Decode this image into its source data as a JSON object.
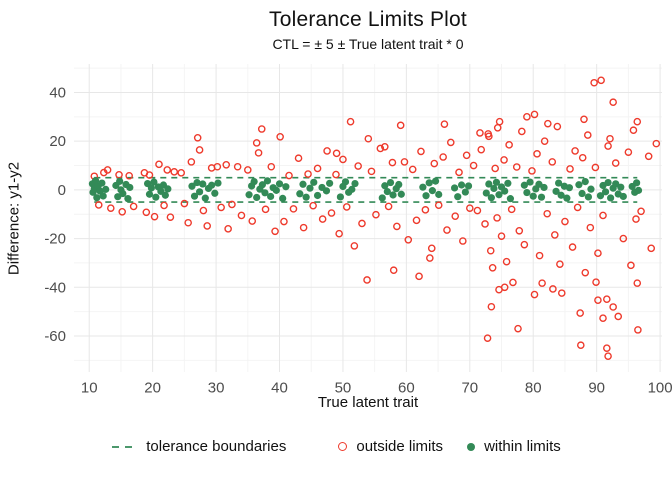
{
  "title": "Tolerance Limits Plot",
  "subtitle": "CTL = ± 5 ± True latent trait * 0",
  "colors": {
    "within": "#338a57",
    "outside": "#ee3a2c",
    "boundary": "#338a57",
    "grid_major": "#e7e7e7",
    "grid_minor": "#f4f4f4",
    "axis_text": "#4d4d4d",
    "text": "#111111",
    "background": "#ffffff"
  },
  "legend": {
    "items": [
      {
        "label": "tolerance boundaries",
        "marker": "green-dashes"
      },
      {
        "label": "outside limits",
        "marker": "red-open-circle"
      },
      {
        "label": "within limits",
        "marker": "green-filled-circle"
      }
    ]
  },
  "chart_data": {
    "type": "scatter",
    "title": "Tolerance Limits Plot",
    "subtitle": "CTL = ± 5 ± True latent trait * 0",
    "xlabel": "True latent trait",
    "ylabel": "Difference: y1-y2",
    "xlim": [
      7.6,
      100.3
    ],
    "ylim": [
      -74.8,
      51.7
    ],
    "x_ticks": [
      10,
      20,
      30,
      40,
      50,
      60,
      70,
      80,
      90,
      100
    ],
    "y_ticks": [
      40,
      20,
      0,
      -20,
      -40,
      -60
    ],
    "grid": true,
    "minor_grid": true,
    "legend_position": "bottom",
    "tolerance_limits": {
      "upper": 5,
      "lower": -5,
      "x_start": 10.8,
      "x_end": 96.4,
      "style": "dashed"
    },
    "series": [
      {
        "name": "within limits",
        "marker": "filled-circle",
        "color": "#338a57",
        "points": [
          [
            10.5,
            2.5
          ],
          [
            10.6,
            -1
          ],
          [
            10.8,
            0.5
          ],
          [
            11,
            3.8
          ],
          [
            11.2,
            -3.2
          ],
          [
            11.4,
            1.5
          ],
          [
            11.7,
            -0.5
          ],
          [
            12,
            2.8
          ],
          [
            12.2,
            -2.5
          ],
          [
            12.6,
            0.2
          ],
          [
            14.2,
            1.8
          ],
          [
            14.5,
            -2.8
          ],
          [
            14.8,
            3.5
          ],
          [
            15,
            0
          ],
          [
            15.3,
            -1.5
          ],
          [
            15.8,
            2.2
          ],
          [
            16.1,
            -3.6
          ],
          [
            16.4,
            1
          ],
          [
            19.2,
            2.6
          ],
          [
            19.5,
            -1.8
          ],
          [
            19.8,
            0.8
          ],
          [
            20.2,
            3.2
          ],
          [
            20.5,
            -3
          ],
          [
            20.9,
            1.2
          ],
          [
            21.3,
            -0.6
          ],
          [
            21.7,
            2
          ],
          [
            22,
            -2.2
          ],
          [
            22.4,
            0.4
          ],
          [
            26.2,
            1.5
          ],
          [
            26.6,
            -2.6
          ],
          [
            27,
            3
          ],
          [
            27.4,
            -0.8
          ],
          [
            27.9,
            2.4
          ],
          [
            28.3,
            -3.4
          ],
          [
            28.8,
            0.6
          ],
          [
            29.3,
            1.9
          ],
          [
            29.8,
            -1.4
          ],
          [
            30.3,
            2.8
          ],
          [
            35.2,
            -2
          ],
          [
            35.6,
            1.6
          ],
          [
            36,
            3.4
          ],
          [
            36.4,
            -3.1
          ],
          [
            36.9,
            0.3
          ],
          [
            37.3,
            2.1
          ],
          [
            37.7,
            -1.2
          ],
          [
            38.1,
            3.7
          ],
          [
            38.6,
            -2.7
          ],
          [
            39,
            0.9
          ],
          [
            39.5,
            -0.2
          ],
          [
            40,
            2.5
          ],
          [
            40.5,
            -3.5
          ],
          [
            41,
            1.3
          ],
          [
            43.2,
            -1.6
          ],
          [
            43.7,
            2.3
          ],
          [
            44.2,
            -3
          ],
          [
            44.8,
            0.7
          ],
          [
            45.4,
            3.1
          ],
          [
            46,
            -2.3
          ],
          [
            46.7,
            1
          ],
          [
            47.4,
            -0.4
          ],
          [
            47.9,
            2.7
          ],
          [
            49.6,
            -2.9
          ],
          [
            50,
            1.4
          ],
          [
            50.4,
            3.3
          ],
          [
            50.9,
            -1
          ],
          [
            51.4,
            0.2
          ],
          [
            51.9,
            2.6
          ],
          [
            56.2,
            -3.3
          ],
          [
            56.6,
            1.7
          ],
          [
            57,
            -0.7
          ],
          [
            57.5,
            3
          ],
          [
            57.9,
            -2.1
          ],
          [
            58.4,
            0.5
          ],
          [
            58.8,
            2.2
          ],
          [
            59.2,
            -1.8
          ],
          [
            62.6,
            1.1
          ],
          [
            63.1,
            -2.4
          ],
          [
            63.6,
            2.9
          ],
          [
            64.1,
            -0.3
          ],
          [
            64.6,
            3.6
          ],
          [
            65.1,
            -1.9
          ],
          [
            67.6,
            0.8
          ],
          [
            68.1,
            -2.8
          ],
          [
            68.7,
            2
          ],
          [
            69.3,
            -0.9
          ],
          [
            69.8,
            1.6
          ],
          [
            72.6,
            -1.3
          ],
          [
            73,
            2.4
          ],
          [
            73.4,
            -3.2
          ],
          [
            73.8,
            0.6
          ],
          [
            74.2,
            3.1
          ],
          [
            74.6,
            -2
          ],
          [
            75,
            1.2
          ],
          [
            75.5,
            -0.5
          ],
          [
            76,
            2.7
          ],
          [
            76.4,
            -3.6
          ],
          [
            78.6,
            1.9
          ],
          [
            79,
            -1.1
          ],
          [
            79.5,
            3.2
          ],
          [
            80,
            -2.6
          ],
          [
            80.4,
            0.4
          ],
          [
            80.9,
            2.3
          ],
          [
            81.3,
            -3
          ],
          [
            81.7,
            1
          ],
          [
            83.6,
            -0.6
          ],
          [
            84,
            2.8
          ],
          [
            84.4,
            -2.2
          ],
          [
            84.9,
            1.5
          ],
          [
            85.3,
            -3.4
          ],
          [
            85.7,
            0.9
          ],
          [
            87.2,
            2.1
          ],
          [
            87.7,
            -1.5
          ],
          [
            88.2,
            3.4
          ],
          [
            88.7,
            -2.9
          ],
          [
            89.1,
            0.3
          ],
          [
            90.6,
            -2.4
          ],
          [
            91,
            1.8
          ],
          [
            91.4,
            -0.8
          ],
          [
            91.8,
            3
          ],
          [
            92.2,
            -3.3
          ],
          [
            92.6,
            0.7
          ],
          [
            93,
            2.5
          ],
          [
            93.4,
            -1.7
          ],
          [
            93.8,
            1.1
          ],
          [
            94.2,
            -2.7
          ],
          [
            95.6,
            1.4
          ],
          [
            96,
            -1
          ],
          [
            96.3,
            2.9
          ],
          [
            96.6,
            -0.2
          ]
        ]
      },
      {
        "name": "outside limits",
        "marker": "open-circle",
        "color": "#ee3a2c",
        "points": [
          [
            10.8,
            5.6
          ],
          [
            11.5,
            -6.2
          ],
          [
            12.3,
            7.1
          ],
          [
            12.9,
            8.2
          ],
          [
            13.4,
            -7.5
          ],
          [
            14.7,
            6.2
          ],
          [
            15.2,
            -9
          ],
          [
            16.3,
            5.8
          ],
          [
            17,
            -6.8
          ],
          [
            18.7,
            7
          ],
          [
            19,
            -9.2
          ],
          [
            19.5,
            6.1
          ],
          [
            20.3,
            -11
          ],
          [
            21,
            10.5
          ],
          [
            21.8,
            -6.4
          ],
          [
            22.3,
            8.2
          ],
          [
            22.8,
            -11.2
          ],
          [
            23.4,
            7.4
          ],
          [
            24.5,
            7
          ],
          [
            25,
            -5.6
          ],
          [
            25.6,
            -13.5
          ],
          [
            26.1,
            11.5
          ],
          [
            27.1,
            21.4
          ],
          [
            27.4,
            16.4
          ],
          [
            28,
            -8.5
          ],
          [
            28.6,
            -14.8
          ],
          [
            29.3,
            9
          ],
          [
            30.2,
            9.5
          ],
          [
            30.8,
            -7.2
          ],
          [
            31.6,
            10.3
          ],
          [
            31.9,
            -16
          ],
          [
            32.5,
            -6
          ],
          [
            33.4,
            9.5
          ],
          [
            34,
            -10.5
          ],
          [
            35,
            8.2
          ],
          [
            35.7,
            -12.8
          ],
          [
            36.4,
            19.3
          ],
          [
            36.7,
            15.2
          ],
          [
            37.2,
            25
          ],
          [
            37.8,
            -8
          ],
          [
            38.7,
            9.5
          ],
          [
            39.3,
            -17
          ],
          [
            40.1,
            21.8
          ],
          [
            40.7,
            -13
          ],
          [
            41.5,
            5.9
          ],
          [
            42.2,
            -7.8
          ],
          [
            43,
            13
          ],
          [
            43.8,
            -15.5
          ],
          [
            44.5,
            6.5
          ],
          [
            45.3,
            -6.5
          ],
          [
            46,
            8.8
          ],
          [
            46.8,
            -12
          ],
          [
            47.5,
            16
          ],
          [
            48.2,
            -9.5
          ],
          [
            48.9,
            6.3
          ],
          [
            49,
            15
          ],
          [
            49.4,
            -18
          ],
          [
            50,
            12.5
          ],
          [
            50.6,
            -7
          ],
          [
            51.2,
            28
          ],
          [
            51.8,
            -23
          ],
          [
            52.4,
            9.8
          ],
          [
            53,
            -13.8
          ],
          [
            53.8,
            -37
          ],
          [
            54,
            21
          ],
          [
            54.5,
            7.6
          ],
          [
            55.2,
            -10.2
          ],
          [
            55.9,
            17
          ],
          [
            56.6,
            17.7
          ],
          [
            57.2,
            -6.8
          ],
          [
            57.8,
            11.2
          ],
          [
            58,
            -33
          ],
          [
            58.5,
            -15
          ],
          [
            59.1,
            26.5
          ],
          [
            59.7,
            11.5
          ],
          [
            60.3,
            -20.5
          ],
          [
            61,
            8.4
          ],
          [
            61.6,
            -12.5
          ],
          [
            62,
            -35.5
          ],
          [
            62.3,
            15.8
          ],
          [
            63,
            -8.2
          ],
          [
            63.7,
            -28
          ],
          [
            64,
            -24
          ],
          [
            64.4,
            10.8
          ],
          [
            65.1,
            -6.3
          ],
          [
            65.8,
            13.5
          ],
          [
            66,
            27
          ],
          [
            66.4,
            -16.5
          ],
          [
            67,
            19.5
          ],
          [
            67.7,
            -10.8
          ],
          [
            68.3,
            7.2
          ],
          [
            68.9,
            -21
          ],
          [
            69.5,
            14.2
          ],
          [
            70,
            -7.5
          ],
          [
            70.6,
            10
          ],
          [
            71.2,
            -8.5
          ],
          [
            71.6,
            23.4
          ],
          [
            71.8,
            16.5
          ],
          [
            72.4,
            -14
          ],
          [
            72.8,
            -60.9
          ],
          [
            72.9,
            23
          ],
          [
            73,
            22
          ],
          [
            73.3,
            -25
          ],
          [
            73.4,
            -48
          ],
          [
            73.6,
            -32
          ],
          [
            74,
            8.8
          ],
          [
            74.3,
            -11.5
          ],
          [
            74.4,
            25.5
          ],
          [
            74.6,
            -41
          ],
          [
            74.7,
            28
          ],
          [
            75,
            -19
          ],
          [
            75.4,
            12.3
          ],
          [
            75.5,
            -40
          ],
          [
            75.8,
            -29.5
          ],
          [
            76.2,
            18.5
          ],
          [
            76.6,
            -8
          ],
          [
            76.8,
            -38
          ],
          [
            77.4,
            9.4
          ],
          [
            77.6,
            -57
          ],
          [
            77.8,
            -16.8
          ],
          [
            78.2,
            24
          ],
          [
            78.6,
            -22.5
          ],
          [
            79,
            30
          ],
          [
            79.8,
            7.8
          ],
          [
            80.2,
            31
          ],
          [
            80.2,
            -43
          ],
          [
            80.6,
            14.8
          ],
          [
            81,
            -27
          ],
          [
            81.4,
            -38.3
          ],
          [
            81.8,
            20
          ],
          [
            82.2,
            -9.8
          ],
          [
            82.3,
            27.2
          ],
          [
            83,
            11.5
          ],
          [
            83.1,
            -40.7
          ],
          [
            83.4,
            -18.5
          ],
          [
            83.8,
            26
          ],
          [
            84.2,
            -30.5
          ],
          [
            84.5,
            -42.4
          ],
          [
            85,
            -13
          ],
          [
            85.8,
            8.6
          ],
          [
            86.2,
            -23.5
          ],
          [
            86.6,
            16
          ],
          [
            87,
            -7.2
          ],
          [
            87.4,
            -50.6
          ],
          [
            87.5,
            -63.8
          ],
          [
            87.8,
            13.2
          ],
          [
            88,
            29
          ],
          [
            88.2,
            -34
          ],
          [
            88.6,
            22.5
          ],
          [
            89,
            -15.5
          ],
          [
            89.6,
            44
          ],
          [
            89.8,
            9.2
          ],
          [
            89.9,
            -37.9
          ],
          [
            90.2,
            -45.3
          ],
          [
            90.2,
            -26
          ],
          [
            90.7,
            45
          ],
          [
            91,
            -10.5
          ],
          [
            91,
            -52.7
          ],
          [
            91.6,
            -44.9
          ],
          [
            91.6,
            -65
          ],
          [
            91.8,
            18
          ],
          [
            91.8,
            -68.3
          ],
          [
            92.1,
            21
          ],
          [
            92.6,
            36
          ],
          [
            92.6,
            -48.1
          ],
          [
            93,
            11
          ],
          [
            93.4,
            -52
          ],
          [
            94.2,
            -20
          ],
          [
            95,
            15.5
          ],
          [
            95.4,
            -31
          ],
          [
            95.8,
            24.5
          ],
          [
            96.2,
            -12
          ],
          [
            96.4,
            28
          ],
          [
            96.4,
            -38.3
          ],
          [
            96.5,
            -57.5
          ],
          [
            97,
            -8.8
          ],
          [
            98.2,
            13.8
          ],
          [
            98.6,
            -24
          ],
          [
            99.4,
            19
          ]
        ]
      }
    ]
  }
}
